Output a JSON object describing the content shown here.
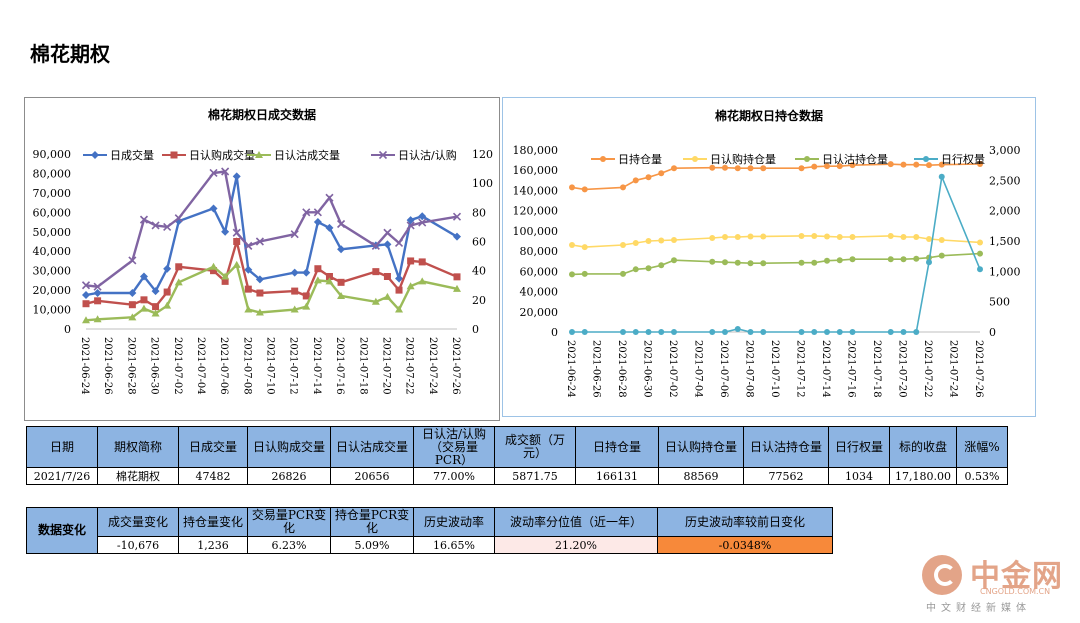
{
  "page_title": "棉花期权",
  "chart_data": [
    {
      "type": "line",
      "title": "棉花期权日成交数据",
      "categories": [
        "2021-06-24",
        "2021-06-25",
        "2021-06-28",
        "2021-06-29",
        "2021-06-30",
        "2021-07-01",
        "2021-07-02",
        "2021-07-05",
        "2021-07-06",
        "2021-07-07",
        "2021-07-08",
        "2021-07-09",
        "2021-07-12",
        "2021-07-13",
        "2021-07-14",
        "2021-07-15",
        "2021-07-16",
        "2021-07-19",
        "2021-07-20",
        "2021-07-21",
        "2021-07-22",
        "2021-07-23",
        "2021-07-26"
      ],
      "x_tick_labels": [
        "2021-06-24",
        "2021-06-26",
        "2021-06-28",
        "2021-06-30",
        "2021-07-02",
        "2021-07-04",
        "2021-07-06",
        "2021-07-08",
        "2021-07-10",
        "2021-07-12",
        "2021-07-14",
        "2021-07-16",
        "2021-07-18",
        "2021-07-20",
        "2021-07-22",
        "2021-07-24",
        "2021-07-26"
      ],
      "left_axis": {
        "ylim": [
          0,
          90000
        ],
        "ticks": [
          "0",
          "10,000",
          "20,000",
          "30,000",
          "40,000",
          "50,000",
          "60,000",
          "70,000",
          "80,000",
          "90,000"
        ]
      },
      "right_axis": {
        "ylim": [
          0,
          120
        ],
        "ticks": [
          "0",
          "20",
          "40",
          "60",
          "80",
          "100",
          "120"
        ]
      },
      "legend_position": "top",
      "series": [
        {
          "name": "日成交量",
          "axis": "left",
          "color": "#4472c4",
          "marker": "diamond",
          "values": [
            17500,
            18500,
            18500,
            27000,
            19500,
            31000,
            55500,
            62000,
            50000,
            78500,
            30500,
            25500,
            29000,
            29000,
            55000,
            52000,
            41000,
            43000,
            43500,
            26000,
            56000,
            58000,
            47482
          ]
        },
        {
          "name": "日认购成交量",
          "axis": "left",
          "color": "#c0504d",
          "marker": "square",
          "values": [
            13000,
            14500,
            12500,
            15000,
            11500,
            19000,
            32000,
            30000,
            24500,
            45000,
            20500,
            18500,
            19500,
            17000,
            31000,
            27000,
            24000,
            29500,
            27000,
            20000,
            35000,
            34500,
            26826
          ]
        },
        {
          "name": "日认沽成交量",
          "axis": "left",
          "color": "#9bbb59",
          "marker": "triangle",
          "values": [
            4500,
            5000,
            6000,
            10500,
            8000,
            12000,
            24000,
            32000,
            27000,
            33000,
            10000,
            8500,
            10000,
            11500,
            25000,
            24500,
            17000,
            14000,
            16500,
            10000,
            22000,
            24500,
            20656
          ]
        },
        {
          "name": "日认沽/认购",
          "axis": "right",
          "color": "#8064a2",
          "marker": "x",
          "values": [
            30,
            29,
            47,
            75,
            71,
            70,
            76,
            107,
            108,
            66,
            57,
            60,
            65,
            80,
            80,
            90,
            72,
            57,
            66,
            59,
            71,
            73,
            77
          ]
        }
      ]
    },
    {
      "type": "line",
      "title": "棉花期权日持仓数据",
      "categories": [
        "2021-06-24",
        "2021-06-25",
        "2021-06-28",
        "2021-06-29",
        "2021-06-30",
        "2021-07-01",
        "2021-07-02",
        "2021-07-05",
        "2021-07-06",
        "2021-07-07",
        "2021-07-08",
        "2021-07-09",
        "2021-07-12",
        "2021-07-13",
        "2021-07-14",
        "2021-07-15",
        "2021-07-16",
        "2021-07-19",
        "2021-07-20",
        "2021-07-21",
        "2021-07-22",
        "2021-07-23",
        "2021-07-26"
      ],
      "x_tick_labels": [
        "2021-06-24",
        "2021-06-26",
        "2021-06-28",
        "2021-06-30",
        "2021-07-02",
        "2021-07-04",
        "2021-07-06",
        "2021-07-08",
        "2021-07-10",
        "2021-07-12",
        "2021-07-14",
        "2021-07-16",
        "2021-07-18",
        "2021-07-20",
        "2021-07-22",
        "2021-07-24",
        "2021-07-26"
      ],
      "left_axis": {
        "ylim": [
          0,
          180000
        ],
        "ticks": [
          "0",
          "20,000",
          "40,000",
          "60,000",
          "80,000",
          "100,000",
          "120,000",
          "140,000",
          "160,000",
          "180,000"
        ]
      },
      "right_axis": {
        "ylim": [
          0,
          3000
        ],
        "ticks": [
          "0",
          "500",
          "1,000",
          "1,500",
          "2,000",
          "2,500",
          "3,000"
        ]
      },
      "legend_position": "top",
      "series": [
        {
          "name": "日持仓量",
          "axis": "left",
          "color": "#f79646",
          "marker": "circle",
          "values": [
            143000,
            141000,
            143000,
            150000,
            153000,
            157000,
            162000,
            162500,
            162500,
            162000,
            162000,
            162000,
            162000,
            163500,
            164000,
            164000,
            165000,
            166000,
            165500,
            165500,
            165000,
            165500,
            166131
          ]
        },
        {
          "name": "日认购持仓量",
          "axis": "left",
          "color": "#ffd966",
          "marker": "circle",
          "values": [
            86000,
            84000,
            86000,
            88000,
            90000,
            90500,
            91000,
            93000,
            94000,
            94000,
            94500,
            94500,
            95000,
            95000,
            94500,
            94000,
            94000,
            95000,
            94000,
            94000,
            92000,
            91000,
            88569
          ]
        },
        {
          "name": "日认沽持仓量",
          "axis": "left",
          "color": "#9bbb59",
          "marker": "circle",
          "values": [
            57000,
            57500,
            57500,
            62000,
            63000,
            66000,
            71000,
            69500,
            69000,
            68500,
            68000,
            68000,
            68500,
            68500,
            70500,
            71000,
            72000,
            72000,
            72000,
            72500,
            73500,
            75500,
            77562
          ]
        },
        {
          "name": "日行权量",
          "axis": "right",
          "color": "#4bacc6",
          "marker": "circle",
          "values": [
            0,
            0,
            0,
            0,
            0,
            0,
            0,
            0,
            0,
            50,
            0,
            0,
            0,
            0,
            0,
            0,
            0,
            0,
            0,
            0,
            1150,
            2560,
            1034
          ]
        }
      ]
    }
  ],
  "summary_table": {
    "headers": [
      "日期",
      "期权简称",
      "日成交量",
      "日认购成交量",
      "日认沽成交量",
      "日认沽/认购（交易量PCR）",
      "成交额（万元）",
      "日持仓量",
      "日认购持仓量",
      "日认沽持仓量",
      "日行权量",
      "标的收盘",
      "涨幅%"
    ],
    "values": [
      "2021/7/26",
      "棉花期权",
      "47482",
      "26826",
      "20656",
      "77.00%",
      "5871.75",
      "166131",
      "88569",
      "77562",
      "1034",
      "17,180.00",
      "0.53%"
    ]
  },
  "change_table": {
    "row_header": "数据变化",
    "headers": [
      "成交量变化",
      "持仓量变化",
      "交易量PCR变化",
      "持仓量PCR变化",
      "历史波动率",
      "波动率分位值（近一年）",
      "历史波动率较前日变化"
    ],
    "values": [
      "-10,676",
      "1,236",
      "6.23%",
      "5.09%",
      "16.65%",
      "21.20%",
      "-0.0348%"
    ],
    "highlight_colors": {
      "percentile": "#fde9e7",
      "hv_change": "#f7893a"
    }
  },
  "watermark": {
    "name": "中金网",
    "url": "CNGOLD.COM.CN",
    "tagline": "中文财经新媒体"
  }
}
